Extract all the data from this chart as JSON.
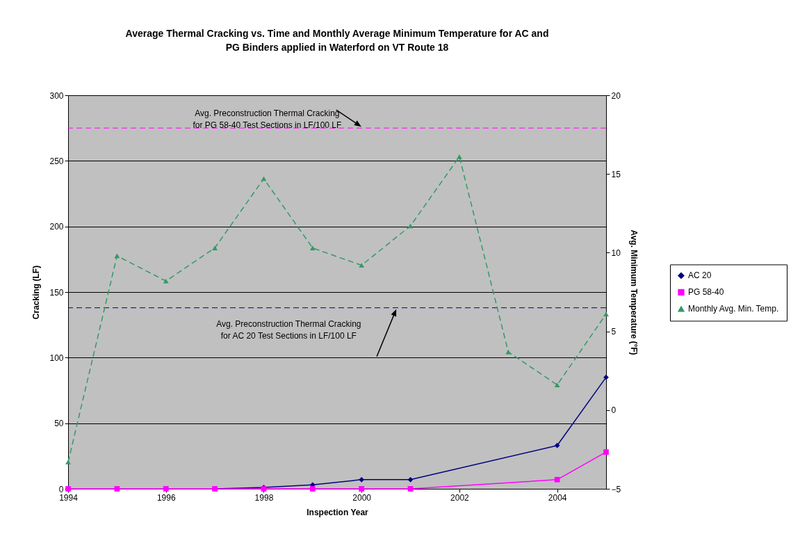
{
  "chart_data": {
    "type": "line",
    "title": "Average Thermal Cracking vs. Time and Monthly Average Minimum Temperature for AC and PG Binders applied in Waterford on VT Route 18",
    "xlabel": "Inspection Year",
    "ylabel": "Cracking (LF)",
    "y2label": "Avg. Minimum Temperature (°F)",
    "xlim": [
      1994,
      2005
    ],
    "xticks": [
      1994,
      1996,
      1998,
      2000,
      2002,
      2004
    ],
    "ylim": [
      0,
      300
    ],
    "yticks": [
      0,
      50,
      100,
      150,
      200,
      250,
      300
    ],
    "y2lim": [
      -5,
      20
    ],
    "y2ticks": [
      -5,
      0,
      5,
      10,
      15,
      20
    ],
    "grid": "y",
    "legend": "right",
    "series": [
      {
        "name": "AC 20",
        "color": "#000080",
        "marker": "diamond",
        "line_style": "solid",
        "x": [
          1997,
          1998,
          1999,
          2000,
          2001,
          2004,
          2005
        ],
        "values": [
          0,
          1,
          3,
          7,
          7,
          33,
          85
        ]
      },
      {
        "name": "PG 58-40",
        "color": "#ff00ff",
        "marker": "square",
        "line_style": "solid",
        "x": [
          1994,
          1995,
          1996,
          1997,
          1998,
          1999,
          2000,
          2001,
          2004,
          2005
        ],
        "values": [
          0,
          0,
          0,
          0,
          0,
          0,
          0,
          0,
          7,
          28
        ]
      },
      {
        "name": "Monthly Avg. Min. Temp.",
        "color": "#339966",
        "marker": "triangle",
        "line_style": "dashed",
        "axis": "y2",
        "x": [
          1994,
          1995,
          1996,
          1997,
          1998,
          1999,
          2000,
          2001,
          2002,
          2003,
          2004,
          2005
        ],
        "values": [
          -3.3,
          9.8,
          8.2,
          10.3,
          14.7,
          10.3,
          9.2,
          11.7,
          16.1,
          3.7,
          1.6,
          6.1
        ]
      }
    ],
    "ref_lines": [
      {
        "axis": "y",
        "value": 275,
        "label": "Avg. Preconstruction Thermal Cracking for PG 58-40 Test Sections in LF/100 LF",
        "color": "#ff00ff",
        "line_style": "dashed"
      },
      {
        "axis": "y",
        "value": 138,
        "label": "Avg. Preconstruction Thermal Cracking for AC 20 Test Sections in LF/100 LF",
        "color": "#000080",
        "line_style": "dashed"
      }
    ]
  }
}
